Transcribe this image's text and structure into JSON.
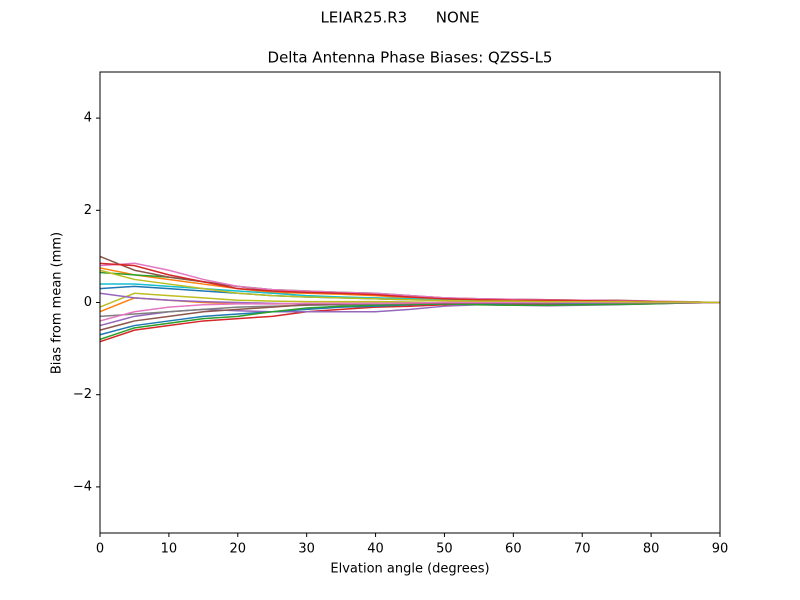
{
  "chart_data": {
    "type": "line",
    "suptitle": "LEIAR25.R3      NONE",
    "title": "Delta Antenna Phase Biases: QZSS-L5",
    "xlabel": "Elvation angle (degrees)",
    "ylabel": "Bias from mean (mm)",
    "x": [
      0,
      5,
      10,
      15,
      20,
      25,
      30,
      35,
      40,
      45,
      50,
      55,
      60,
      65,
      70,
      75,
      80,
      85,
      90
    ],
    "xlim": [
      0,
      90
    ],
    "xticks": [
      0,
      10,
      20,
      30,
      40,
      50,
      60,
      70,
      80,
      90
    ],
    "ylim": [
      -5,
      5
    ],
    "yticks": [
      {
        "value": -4,
        "label": "−4"
      },
      {
        "value": -2,
        "label": "−2"
      },
      0,
      2,
      4
    ],
    "grid": false,
    "series": [
      {
        "color": "#1f77b4",
        "values": [
          0.3,
          0.35,
          0.3,
          0.25,
          0.2,
          0.15,
          0.12,
          0.1,
          0.08,
          0.06,
          0.05,
          0.04,
          0.04,
          0.03,
          0.03,
          0.02,
          0.02,
          0.01,
          0
        ]
      },
      {
        "color": "#ff7f0e",
        "values": [
          0.75,
          0.6,
          0.5,
          0.4,
          0.3,
          0.22,
          0.2,
          0.18,
          0.15,
          0.1,
          0.06,
          0.05,
          0.04,
          0.04,
          0.03,
          0.03,
          0.02,
          0.01,
          0
        ]
      },
      {
        "color": "#2ca02c",
        "values": [
          0.65,
          0.6,
          0.55,
          0.45,
          0.35,
          0.28,
          0.25,
          0.22,
          0.2,
          0.15,
          0.08,
          0.06,
          0.05,
          0.05,
          0.04,
          0.03,
          0.02,
          0.01,
          0
        ]
      },
      {
        "color": "#d62728",
        "values": [
          -0.85,
          -0.6,
          -0.5,
          -0.4,
          -0.35,
          -0.3,
          -0.2,
          -0.15,
          -0.1,
          -0.08,
          -0.05,
          -0.04,
          -0.04,
          -0.03,
          -0.03,
          -0.02,
          -0.02,
          -0.01,
          0
        ]
      },
      {
        "color": "#9467bd",
        "values": [
          -0.5,
          -0.3,
          -0.2,
          -0.15,
          -0.18,
          -0.2,
          -0.2,
          -0.2,
          -0.2,
          -0.15,
          -0.08,
          -0.05,
          -0.06,
          -0.07,
          -0.06,
          -0.05,
          -0.03,
          -0.01,
          0
        ]
      },
      {
        "color": "#8c564b",
        "values": [
          1.0,
          0.7,
          0.55,
          0.45,
          0.35,
          0.25,
          0.22,
          0.2,
          0.18,
          0.15,
          0.1,
          0.08,
          0.07,
          0.06,
          0.05,
          0.05,
          0.03,
          0.01,
          0
        ]
      },
      {
        "color": "#e377c2",
        "values": [
          0.8,
          0.85,
          0.7,
          0.5,
          0.35,
          0.28,
          0.25,
          0.22,
          0.2,
          0.15,
          0.1,
          0.08,
          0.07,
          0.06,
          0.05,
          0.04,
          0.03,
          0.02,
          0
        ]
      },
      {
        "color": "#7f7f7f",
        "values": [
          -0.3,
          -0.25,
          -0.2,
          -0.15,
          -0.1,
          -0.08,
          -0.06,
          -0.05,
          -0.04,
          -0.03,
          -0.02,
          -0.02,
          -0.02,
          -0.02,
          -0.02,
          -0.01,
          -0.01,
          0,
          0
        ]
      },
      {
        "color": "#bcbd22",
        "values": [
          -0.1,
          0.2,
          0.15,
          0.1,
          0.05,
          0.03,
          0.02,
          0.02,
          0.02,
          0.01,
          0,
          0,
          0,
          0,
          0,
          0,
          0,
          0,
          0
        ]
      },
      {
        "color": "#17becf",
        "values": [
          0.4,
          0.4,
          0.35,
          0.3,
          0.25,
          0.2,
          0.15,
          0.12,
          0.1,
          0.08,
          0.05,
          0.04,
          0.03,
          0.03,
          0.02,
          0.02,
          0.01,
          0.01,
          0
        ]
      },
      {
        "color": "#1f77b4",
        "values": [
          -0.7,
          -0.5,
          -0.4,
          -0.3,
          -0.25,
          -0.2,
          -0.15,
          -0.1,
          -0.08,
          -0.05,
          -0.03,
          -0.03,
          -0.02,
          -0.02,
          -0.02,
          -0.01,
          -0.01,
          0,
          0
        ]
      },
      {
        "color": "#ff7f0e",
        "values": [
          -0.2,
          0.1,
          0.05,
          0,
          -0.02,
          -0.03,
          -0.03,
          -0.02,
          -0.02,
          -0.01,
          0,
          0,
          0,
          0,
          0,
          0,
          0,
          0,
          0
        ]
      },
      {
        "color": "#2ca02c",
        "values": [
          -0.8,
          -0.55,
          -0.45,
          -0.35,
          -0.3,
          -0.2,
          -0.12,
          -0.08,
          -0.06,
          -0.04,
          -0.03,
          -0.05,
          -0.06,
          -0.06,
          -0.05,
          -0.04,
          -0.03,
          -0.01,
          0
        ]
      },
      {
        "color": "#d62728",
        "values": [
          0.85,
          0.8,
          0.6,
          0.45,
          0.3,
          0.25,
          0.22,
          0.2,
          0.17,
          0.12,
          0.08,
          0.06,
          0.05,
          0.05,
          0.04,
          0.03,
          0.02,
          0.01,
          0
        ]
      },
      {
        "color": "#9467bd",
        "values": [
          0.2,
          0.1,
          0.05,
          0.02,
          0,
          -0.02,
          -0.03,
          -0.03,
          -0.03,
          -0.02,
          -0.01,
          -0.01,
          -0.01,
          -0.01,
          0,
          0,
          0,
          0,
          0
        ]
      },
      {
        "color": "#8c564b",
        "values": [
          -0.6,
          -0.4,
          -0.3,
          -0.2,
          -0.15,
          -0.1,
          -0.05,
          -0.03,
          -0.02,
          -0.02,
          -0.01,
          -0.01,
          -0.01,
          -0.01,
          0,
          0,
          0,
          0,
          0
        ]
      },
      {
        "color": "#e377c2",
        "values": [
          -0.4,
          -0.2,
          -0.1,
          -0.05,
          -0.03,
          -0.03,
          -0.02,
          -0.02,
          -0.02,
          -0.01,
          0,
          0,
          0,
          0,
          0,
          0,
          0,
          0,
          0
        ]
      },
      {
        "color": "#bcbd22",
        "values": [
          0.7,
          0.5,
          0.4,
          0.3,
          0.2,
          0.15,
          0.12,
          0.1,
          0.08,
          0.06,
          0.04,
          0.03,
          0.03,
          0.02,
          0.02,
          0.02,
          0.01,
          0.01,
          0
        ]
      }
    ]
  }
}
